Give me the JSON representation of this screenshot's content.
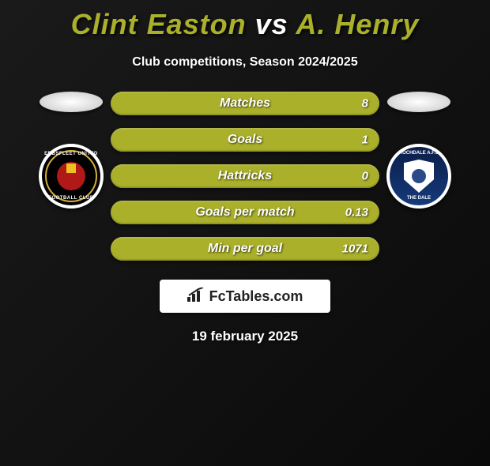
{
  "title_html": "<span style=\"color:#aab02a\">Clint Easton</span> <span style=\"color:#fff\">vs</span> <span style=\"color:#aab02a\">A. Henry</span>",
  "subtitle": "Club competitions, Season 2024/2025",
  "left_club_top": "EBBSFLEET UNITED",
  "left_club_bot": "FOOTBALL CLUB",
  "right_club_top": "ROCHDALE A.F.C",
  "right_club_bot": "THE DALE",
  "stat_bar_style": {
    "track_color": "#aab02a",
    "fill_color": "#aab02a",
    "fill_pct": 100
  },
  "stats": [
    {
      "label": "Matches",
      "value": "8"
    },
    {
      "label": "Goals",
      "value": "1"
    },
    {
      "label": "Hattricks",
      "value": "0"
    },
    {
      "label": "Goals per match",
      "value": "0.13"
    },
    {
      "label": "Min per goal",
      "value": "1071"
    }
  ],
  "watermark_text": "FcTables.com",
  "footer_date": "19 february 2025",
  "colors": {
    "olive": "#aab02a",
    "background_dark": "#111111"
  }
}
